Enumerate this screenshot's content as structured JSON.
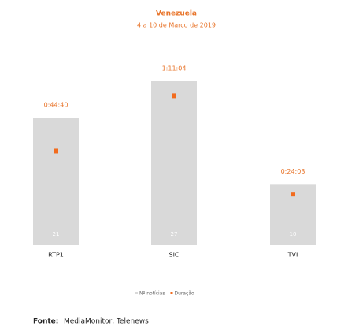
{
  "chart_data": {
    "type": "bar",
    "title": "Venezuela",
    "subtitle": "4 a 10 de Março de 2019",
    "categories": [
      "RTP1",
      "SIC",
      "TVI"
    ],
    "series": [
      {
        "name": "Nº notícias",
        "type": "bar",
        "color": "#d9d9d9",
        "values": [
          21,
          27,
          10
        ]
      },
      {
        "name": "Duração",
        "type": "scatter",
        "color": "#f26b1d",
        "axis": "y2",
        "values": [
          2680,
          4264,
          1443
        ],
        "value_labels": [
          "0:44:40",
          "1:11:04",
          "0:24:03"
        ]
      }
    ],
    "ylim": [
      0,
      30
    ],
    "y2lim": [
      0,
      5200
    ],
    "source_label": "Fonte:",
    "source": "MediaMonitor, Telenews"
  }
}
